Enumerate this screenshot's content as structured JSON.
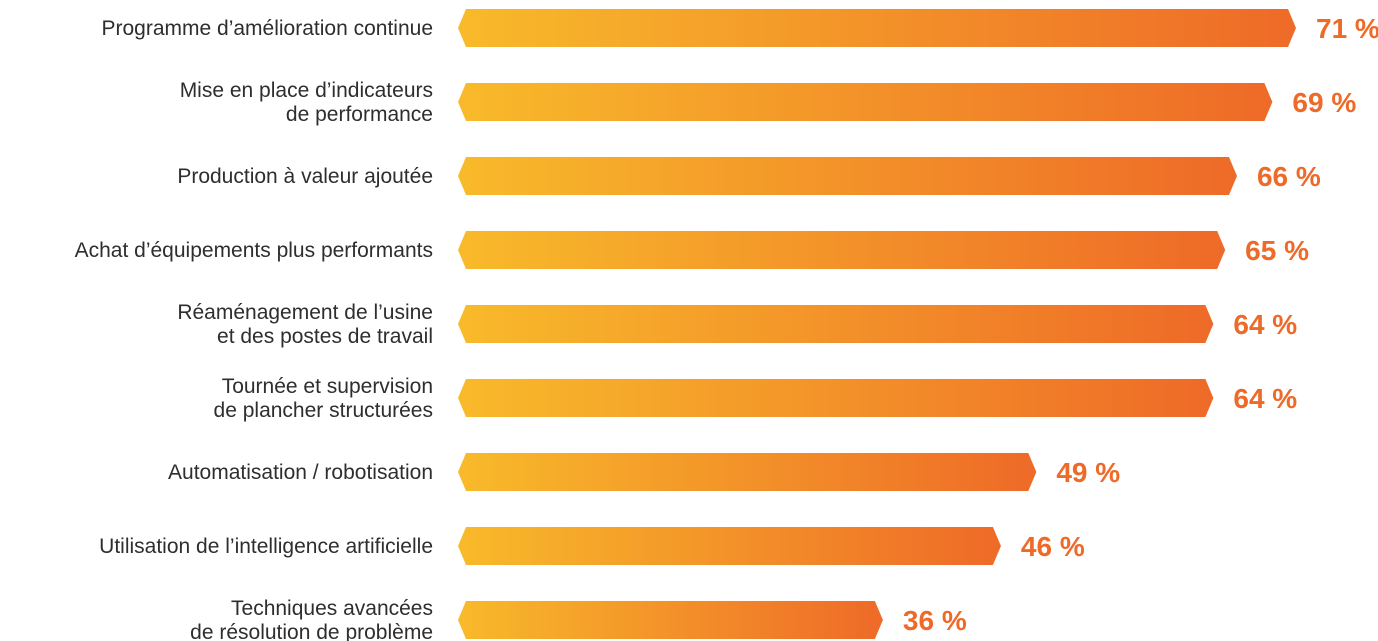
{
  "chart_data": {
    "type": "bar",
    "orientation": "horizontal",
    "categories": [
      [
        "Programme d’amélioration continue"
      ],
      [
        "Mise en place d’indicateurs",
        "de performance"
      ],
      [
        "Production à valeur ajoutée"
      ],
      [
        "Achat d’équipements plus performants"
      ],
      [
        "Réaménagement de l’usine",
        "et des postes de travail"
      ],
      [
        "Tournée et supervision",
        "de plancher structurées"
      ],
      [
        "Automatisation / robotisation"
      ],
      [
        "Utilisation de l’intelligence artificielle"
      ],
      [
        "Techniques avancées",
        "de résolution de problème"
      ]
    ],
    "values": [
      71,
      69,
      66,
      65,
      64,
      64,
      49,
      46,
      36
    ],
    "value_labels": [
      "71 %",
      "69 %",
      "66 %",
      "65 %",
      "64 %",
      "64 %",
      "49 %",
      "46 %",
      "36 %"
    ],
    "value_suffix": " %",
    "xlim": [
      0,
      71
    ],
    "title": "",
    "xlabel": "",
    "ylabel": "",
    "grid": false,
    "legend": "none",
    "colors": {
      "bar_gradient_start": "#F8BA2A",
      "bar_gradient_end": "#EE6A28",
      "value_text": "#EE6A28",
      "label_text": "#2E2E2E"
    }
  }
}
